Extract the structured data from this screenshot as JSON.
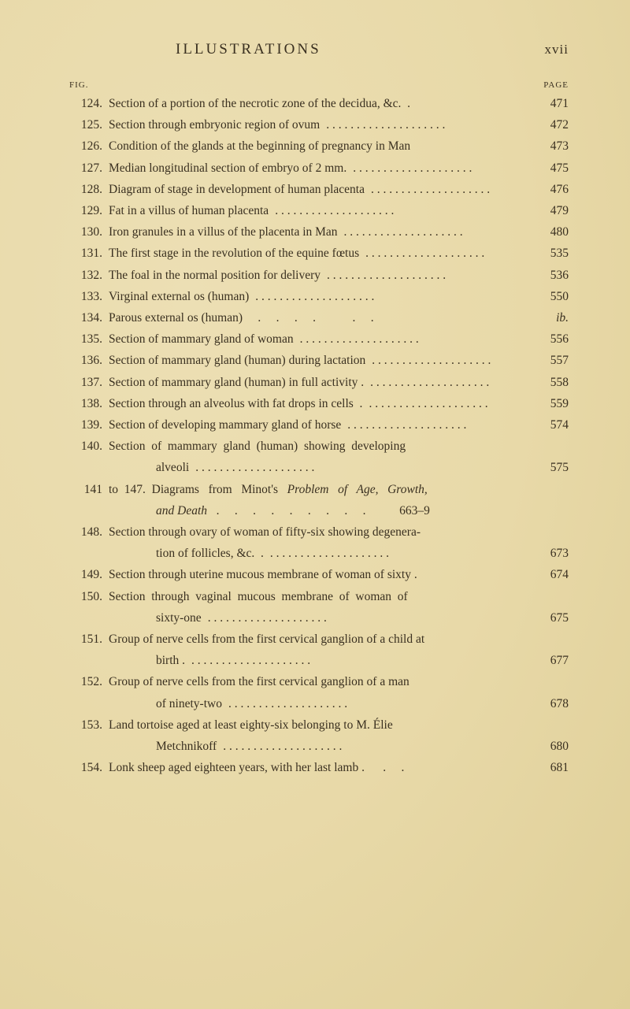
{
  "colors": {
    "background": "#e8d9a8",
    "text": "#3a3020"
  },
  "typography": {
    "body_fontsize": 15.5,
    "lineheight": 27.2,
    "header_fontsize": 19
  },
  "header": {
    "running_title": "ILLUSTRATIONS",
    "roman_page": "xvii"
  },
  "col_heads": {
    "fig": "FIG.",
    "page": "PAGE"
  },
  "entries": [
    {
      "n": "124.",
      "lines": [
        "Section of a portion of the necrotic zone of the decidua, &c.  ."
      ],
      "pg": "471"
    },
    {
      "n": "125.",
      "lines": [
        "Section through embryonic region of ovum"
      ],
      "pg": "472",
      "dots": true
    },
    {
      "n": "126.",
      "lines": [
        "Condition of the glands at the beginning of pregnancy in Man"
      ],
      "pg": "473"
    },
    {
      "n": "127.",
      "lines": [
        "Median longitudinal section of embryo of 2 mm."
      ],
      "pg": "475",
      "dots": true
    },
    {
      "n": "128.",
      "lines": [
        "Diagram of stage in development of human placenta"
      ],
      "pg": "476",
      "dots": true
    },
    {
      "n": "129.",
      "lines": [
        "Fat in a villus of human placenta"
      ],
      "pg": "479",
      "dots": true
    },
    {
      "n": "130.",
      "lines": [
        "Iron granules in a villus of the placenta in Man"
      ],
      "pg": "480",
      "dots": true
    },
    {
      "n": "131.",
      "lines": [
        "The first stage in the revolution of the equine fœtus"
      ],
      "pg": "535",
      "dots": true
    },
    {
      "n": "132.",
      "lines": [
        "The foal in the normal position for delivery"
      ],
      "pg": "536",
      "dots": true
    },
    {
      "n": "133.",
      "lines": [
        "Virginal external os (human)"
      ],
      "pg": "550",
      "dots": true
    },
    {
      "n": "134.",
      "lines": [
        "Parous external os (human)     .     .     .     .            .     ."
      ],
      "pg": "ib.",
      "dots": false,
      "italic_pg": true
    },
    {
      "n": "135.",
      "lines": [
        "Section of mammary gland of woman"
      ],
      "pg": "556",
      "dots": true
    },
    {
      "n": "136.",
      "lines": [
        "Section of mammary gland (human) during lactation"
      ],
      "pg": "557",
      "dots": true
    },
    {
      "n": "137.",
      "lines": [
        "Section of mammary gland (human) in full activity ."
      ],
      "pg": "558",
      "dots": true
    },
    {
      "n": "138.",
      "lines": [
        "Section through an alveolus with fat drops in cells  ."
      ],
      "pg": "559",
      "dots": true
    },
    {
      "n": "139.",
      "lines": [
        "Section of developing mammary gland of horse"
      ],
      "pg": "574",
      "dots": true
    },
    {
      "n": "140.",
      "multi": [
        {
          "t": "Section  of  mammary  gland  (human)  showing  developing",
          "dots": false
        },
        {
          "t": "alveoli",
          "indent": true,
          "dots": true,
          "pg": "575"
        }
      ]
    },
    {
      "n": "141",
      "multi": [
        {
          "t_html": "to  147.  Diagrams   from   Minot's   <i>Problem   of   Age,   Growth,</i>",
          "dots": false
        },
        {
          "t_html": "<i>and Death</i>   .     .     .     .     .     .     .     .     .           663–9",
          "indent": true,
          "dots": false,
          "pg": ""
        }
      ]
    },
    {
      "n": "148.",
      "multi": [
        {
          "t": "Section through ovary of woman of fifty-six showing degenera-",
          "dots": false
        },
        {
          "t": "tion of follicles, &c.  .",
          "indent": true,
          "dots": true,
          "pg": "673"
        }
      ]
    },
    {
      "n": "149.",
      "lines": [
        "Section through uterine mucous membrane of woman of sixty ."
      ],
      "pg": "674"
    },
    {
      "n": "150.",
      "multi": [
        {
          "t": "Section  through  vaginal  mucous  membrane  of  woman  of",
          "dots": false
        },
        {
          "t": "sixty-one",
          "indent": true,
          "dots": true,
          "pg": "675"
        }
      ]
    },
    {
      "n": "151.",
      "multi": [
        {
          "t": "Group of nerve cells from the first cervical ganglion of a child at",
          "dots": false
        },
        {
          "t": "birth .",
          "indent": true,
          "dots": true,
          "pg": "677"
        }
      ]
    },
    {
      "n": "152.",
      "multi": [
        {
          "t": "Group of nerve cells from the first cervical ganglion of a man",
          "dots": false
        },
        {
          "t": "of ninety-two",
          "indent": true,
          "dots": true,
          "pg": "678"
        }
      ]
    },
    {
      "n": "153.",
      "multi": [
        {
          "t": "Land tortoise aged at least eighty-six belonging to M. Élie",
          "dots": false
        },
        {
          "t": "Metchnikoff",
          "indent": true,
          "dots": true,
          "pg": "680"
        }
      ]
    },
    {
      "n": "154.",
      "lines": [
        "Lonk sheep aged eighteen years, with her last lamb .      .     ."
      ],
      "pg": "681"
    }
  ]
}
